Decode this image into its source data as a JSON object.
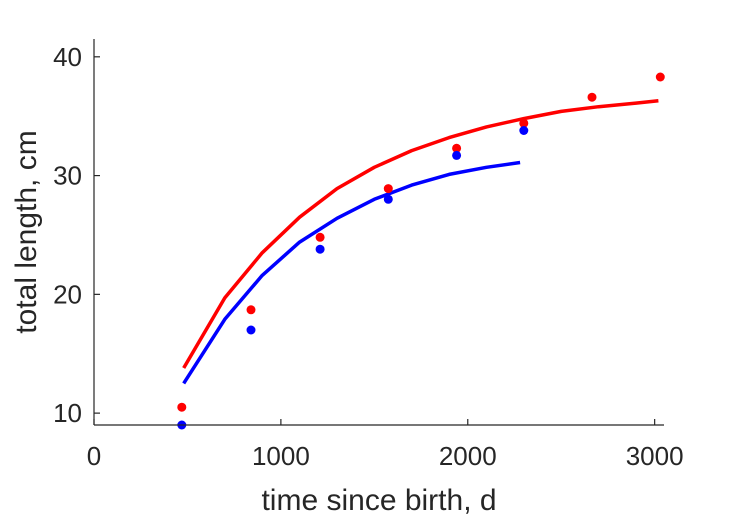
{
  "chart_data": {
    "type": "scatter",
    "title": "",
    "xlabel": "time since birth, d",
    "ylabel": "total length, cm",
    "xlim": [
      0,
      3050
    ],
    "ylim": [
      9,
      41.5
    ],
    "xticks": [
      0,
      1000,
      2000,
      3000
    ],
    "xtick_labels": [
      "0",
      "1000",
      "2000",
      "3000"
    ],
    "yticks": [
      10,
      20,
      30,
      40
    ],
    "ytick_labels": [
      "10",
      "20",
      "30",
      "40"
    ],
    "grid": false,
    "series": [
      {
        "color": "#ff0000",
        "points": {
          "x": [
            470,
            840,
            1210,
            1575,
            1940,
            2300,
            2665,
            3030
          ],
          "y": [
            10.5,
            18.7,
            24.8,
            28.9,
            32.3,
            34.4,
            36.6,
            38.3
          ]
        },
        "fit": {
          "x": [
            480,
            700,
            900,
            1100,
            1300,
            1500,
            1700,
            1900,
            2100,
            2300,
            2500,
            2700,
            2900,
            3020
          ],
          "y": [
            13.8,
            19.7,
            23.5,
            26.5,
            28.9,
            30.7,
            32.1,
            33.2,
            34.1,
            34.8,
            35.4,
            35.8,
            36.1,
            36.3
          ]
        }
      },
      {
        "color": "#0000ff",
        "points": {
          "x": [
            470,
            840,
            1210,
            1575,
            1940,
            2300
          ],
          "y": [
            9.0,
            17.0,
            23.8,
            28.0,
            31.7,
            33.8
          ]
        },
        "fit": {
          "x": [
            480,
            700,
            900,
            1100,
            1300,
            1500,
            1700,
            1900,
            2100,
            2280
          ],
          "y": [
            12.5,
            17.9,
            21.6,
            24.4,
            26.4,
            28.0,
            29.2,
            30.1,
            30.7,
            31.1
          ]
        }
      }
    ]
  }
}
